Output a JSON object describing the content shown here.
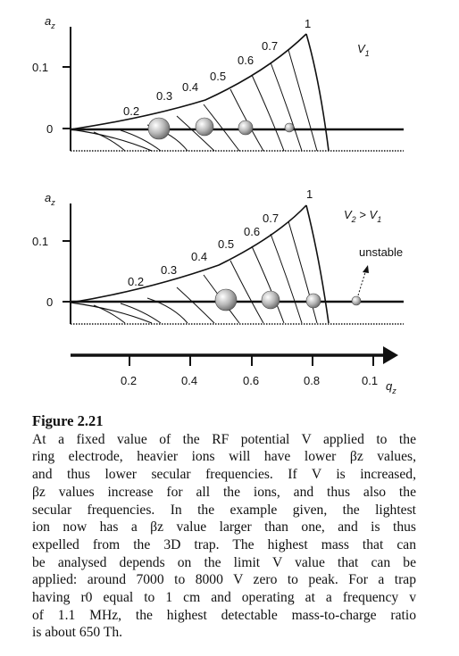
{
  "figure": {
    "top": {
      "axis_label": "a",
      "axis_label_sub": "z",
      "tick_labels": [
        "0.1",
        "0"
      ],
      "curve_labels": [
        "0.2",
        "0.3",
        "0.4",
        "0.5",
        "0.6",
        "0.7",
        "1"
      ],
      "voltage_label": "V",
      "voltage_sub": "1"
    },
    "bottom": {
      "axis_label": "a",
      "axis_label_sub": "z",
      "tick_labels": [
        "0.1",
        "0"
      ],
      "curve_labels": [
        "0.2",
        "0.3",
        "0.4",
        "0.5",
        "0.6",
        "0.7",
        "1"
      ],
      "voltage_label": "V",
      "voltage_sub1": "2",
      "voltage_mid": " > V",
      "voltage_sub2": "1",
      "unstable_label": "unstable"
    },
    "qaxis": {
      "tick_labels": [
        "0.2",
        "0.4",
        "0.6",
        "0.8",
        "0.1"
      ],
      "axis_label": "q",
      "axis_label_sub": "z"
    }
  },
  "caption": {
    "title": "Figure 2.21",
    "lines": [
      "At a fixed value of the RF potential V applied to the",
      "ring electrode, heavier ions will have lower βz values,",
      "and thus lower secular frequencies. If V is increased,",
      "βz values increase for all the ions, and thus also the",
      "secular frequencies. In the example given, the lightest",
      "ion now has a βz value larger than one, and is thus",
      "expelled from the 3D trap. The highest mass that can",
      "be analysed depends on the limit V value that can be",
      "applied: around 7000 to 8000 V zero to peak. For a trap",
      "having r0 equal to 1 cm and operating at a frequency v",
      "of 1.1 MHz, the highest detectable mass-to-charge ratio",
      "is about 650 Th."
    ]
  },
  "colors": {
    "ink": "#111111",
    "ion_fill": "#c8c8c8"
  }
}
